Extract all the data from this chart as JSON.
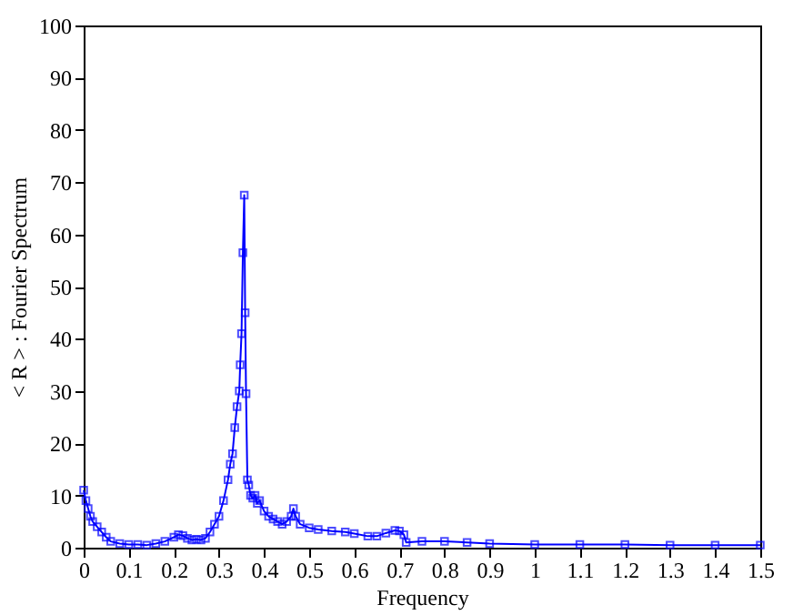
{
  "chart_data": {
    "type": "line",
    "xlabel": "Frequency",
    "ylabel": "< R > : Fourier Spectrum",
    "x": [
      0.0,
      0.005,
      0.01,
      0.015,
      0.02,
      0.03,
      0.04,
      0.05,
      0.06,
      0.08,
      0.1,
      0.12,
      0.14,
      0.16,
      0.18,
      0.2,
      0.21,
      0.22,
      0.23,
      0.24,
      0.25,
      0.26,
      0.27,
      0.28,
      0.29,
      0.3,
      0.31,
      0.32,
      0.325,
      0.33,
      0.335,
      0.34,
      0.345,
      0.347,
      0.35,
      0.353,
      0.356,
      0.358,
      0.36,
      0.363,
      0.366,
      0.37,
      0.375,
      0.38,
      0.385,
      0.39,
      0.4,
      0.41,
      0.42,
      0.43,
      0.44,
      0.45,
      0.46,
      0.465,
      0.47,
      0.48,
      0.5,
      0.52,
      0.55,
      0.58,
      0.6,
      0.63,
      0.65,
      0.67,
      0.69,
      0.7,
      0.71,
      0.715,
      0.75,
      0.8,
      0.85,
      0.9,
      1.0,
      1.1,
      1.2,
      1.3,
      1.4,
      1.5
    ],
    "series": [
      {
        "color": "#0000ff",
        "values": [
          11,
          9,
          7.5,
          6,
          5,
          4,
          3,
          2,
          1.2,
          0.8,
          0.6,
          0.6,
          0.5,
          0.8,
          1.2,
          2,
          2.5,
          2.3,
          1.8,
          1.5,
          1.6,
          1.5,
          1.8,
          3,
          4.5,
          6,
          9,
          13,
          16,
          18,
          23,
          27,
          30,
          35,
          41,
          56.5,
          67.5,
          45,
          29.5,
          13,
          12,
          10,
          9.5,
          10,
          8.5,
          9,
          7,
          6,
          5.5,
          5,
          4.5,
          5,
          6,
          7.5,
          6,
          4.5,
          3.8,
          3.5,
          3.2,
          3,
          2.7,
          2.2,
          2.2,
          2.8,
          3.3,
          3.2,
          2.5,
          1,
          1.2,
          1.2,
          1,
          0.8,
          0.6,
          0.6,
          0.6,
          0.5,
          0.5,
          0.5
        ]
      }
    ],
    "xlim": [
      0,
      1.5
    ],
    "xticks": [
      0,
      0.1,
      0.2,
      0.3,
      0.4,
      0.5,
      0.6,
      0.7,
      0.8,
      0.9,
      1,
      1.1,
      1.2,
      1.3,
      1.4,
      1.5
    ],
    "ylim": [
      0,
      100
    ],
    "yticks": [
      0,
      10,
      20,
      30,
      40,
      50,
      60,
      70,
      80,
      90,
      100
    ],
    "marker": "square",
    "line_style": "solid",
    "grid": false
  }
}
